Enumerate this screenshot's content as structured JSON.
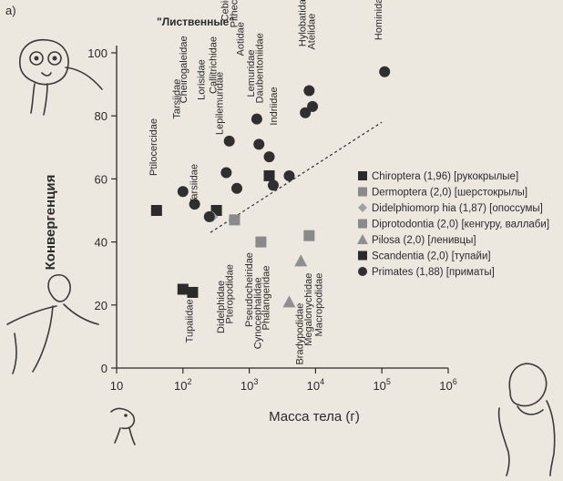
{
  "panel_label": "а)",
  "canopy_label": "\"Лиственные\"",
  "chart_data": {
    "type": "scatter",
    "xscale": "log",
    "xlabel": "Масса тела (г)",
    "ylabel": "Конвергенция",
    "xlim": [
      10,
      1000000
    ],
    "ylim": [
      0,
      100
    ],
    "x_ticks": [
      {
        "v": 10,
        "base": "10",
        "exp": ""
      },
      {
        "v": 100,
        "base": "10",
        "exp": "2"
      },
      {
        "v": 1000,
        "base": "10",
        "exp": "3"
      },
      {
        "v": 10000,
        "base": "10",
        "exp": "4"
      },
      {
        "v": 100000,
        "base": "10",
        "exp": "5"
      },
      {
        "v": 1000000,
        "base": "10",
        "exp": "6"
      }
    ],
    "y_ticks": [
      0,
      20,
      40,
      60,
      80,
      100
    ],
    "trendline": [
      [
        260,
        43
      ],
      [
        100000,
        78
      ]
    ],
    "series": [
      {
        "name": "Chiroptera (1,96) [рукокрылые]",
        "marker": "square",
        "color": "#2b2b2b",
        "points": [
          [
            40,
            50
          ],
          [
            100,
            25
          ],
          [
            320,
            50
          ],
          [
            2000,
            61
          ]
        ]
      },
      {
        "name": "Dermoptera (2,0) [шерстокрылы]",
        "marker": "square",
        "color": "#8a8a8a",
        "points": [
          [
            8000,
            42
          ]
        ]
      },
      {
        "name": "Didelphiomorp hia (1,87) [опоссумы]",
        "marker": "diamond",
        "color": "#a0a0a0",
        "points": [
          [
            280,
            48
          ]
        ]
      },
      {
        "name": "Diprotodontia (2,0) [кенгуру, валлаби]",
        "marker": "square",
        "color": "#8a8a8a",
        "points": [
          [
            600,
            47
          ],
          [
            1500,
            40
          ]
        ]
      },
      {
        "name": "Pilosa (2,0) [ленивцы]",
        "marker": "triangle",
        "color": "#8f8f8f",
        "points": [
          [
            6000,
            34
          ],
          [
            4000,
            21
          ]
        ]
      },
      {
        "name": "Scandentia (2,0) [тупайи]",
        "marker": "square",
        "color": "#2b2b2b",
        "points": [
          [
            140,
            24
          ]
        ]
      },
      {
        "name": "Primates (1,88) [приматы]",
        "marker": "circle",
        "color": "#2f2f2f",
        "points": [
          [
            100,
            56
          ],
          [
            150,
            52
          ],
          [
            250,
            48
          ],
          [
            450,
            62
          ],
          [
            500,
            72
          ],
          [
            650,
            57
          ],
          [
            1300,
            79
          ],
          [
            1400,
            71
          ],
          [
            2000,
            67
          ],
          [
            2300,
            58
          ],
          [
            4000,
            61
          ],
          [
            7000,
            81
          ],
          [
            8000,
            88
          ],
          [
            9000,
            83
          ],
          [
            110000,
            94
          ]
        ]
      }
    ],
    "family_labels": [
      {
        "text": "Ptilocercidae",
        "x": 40,
        "y": 61
      },
      {
        "text": "Tupaiidae",
        "x": 140,
        "y": 8
      },
      {
        "text": "Tarsiidae",
        "x": 90,
        "y": 79
      },
      {
        "text": "Cheirogaleidae",
        "x": 115,
        "y": 84
      },
      {
        "text": "Tarsiidae",
        "x": 165,
        "y": 52
      },
      {
        "text": "Lorisidae",
        "x": 210,
        "y": 85
      },
      {
        "text": "Callitrichidae",
        "x": 320,
        "y": 87
      },
      {
        "text": "Lepilemuridae",
        "x": 400,
        "y": 74
      },
      {
        "text": "Cebidae",
        "x": 480,
        "y": 110
      },
      {
        "text": "Pithecidae",
        "x": 660,
        "y": 108
      },
      {
        "text": "Aotidae",
        "x": 820,
        "y": 99
      },
      {
        "text": "Lemuridae",
        "x": 1180,
        "y": 86
      },
      {
        "text": "Daubentoniidae",
        "x": 1600,
        "y": 84
      },
      {
        "text": "Indriidae",
        "x": 2600,
        "y": 77
      },
      {
        "text": "Didelphidae",
        "x": 420,
        "y": 11
      },
      {
        "text": "Pteropodidae",
        "x": 560,
        "y": 14
      },
      {
        "text": "Pseudocheiridae",
        "x": 1120,
        "y": 13
      },
      {
        "text": "Cynocephalidae",
        "x": 1500,
        "y": 6
      },
      {
        "text": "Phalangeridae",
        "x": 2000,
        "y": 12
      },
      {
        "text": "Hylobatidae",
        "x": 7100,
        "y": 102
      },
      {
        "text": "Atelidae",
        "x": 9700,
        "y": 101
      },
      {
        "text": "Bradypodidae",
        "x": 6400,
        "y": 1
      },
      {
        "text": "Megalonychidae",
        "x": 8700,
        "y": 7
      },
      {
        "text": "Macropodidae",
        "x": 12500,
        "y": 10
      },
      {
        "text": "Hominidae",
        "x": 100000,
        "y": 104
      }
    ]
  }
}
